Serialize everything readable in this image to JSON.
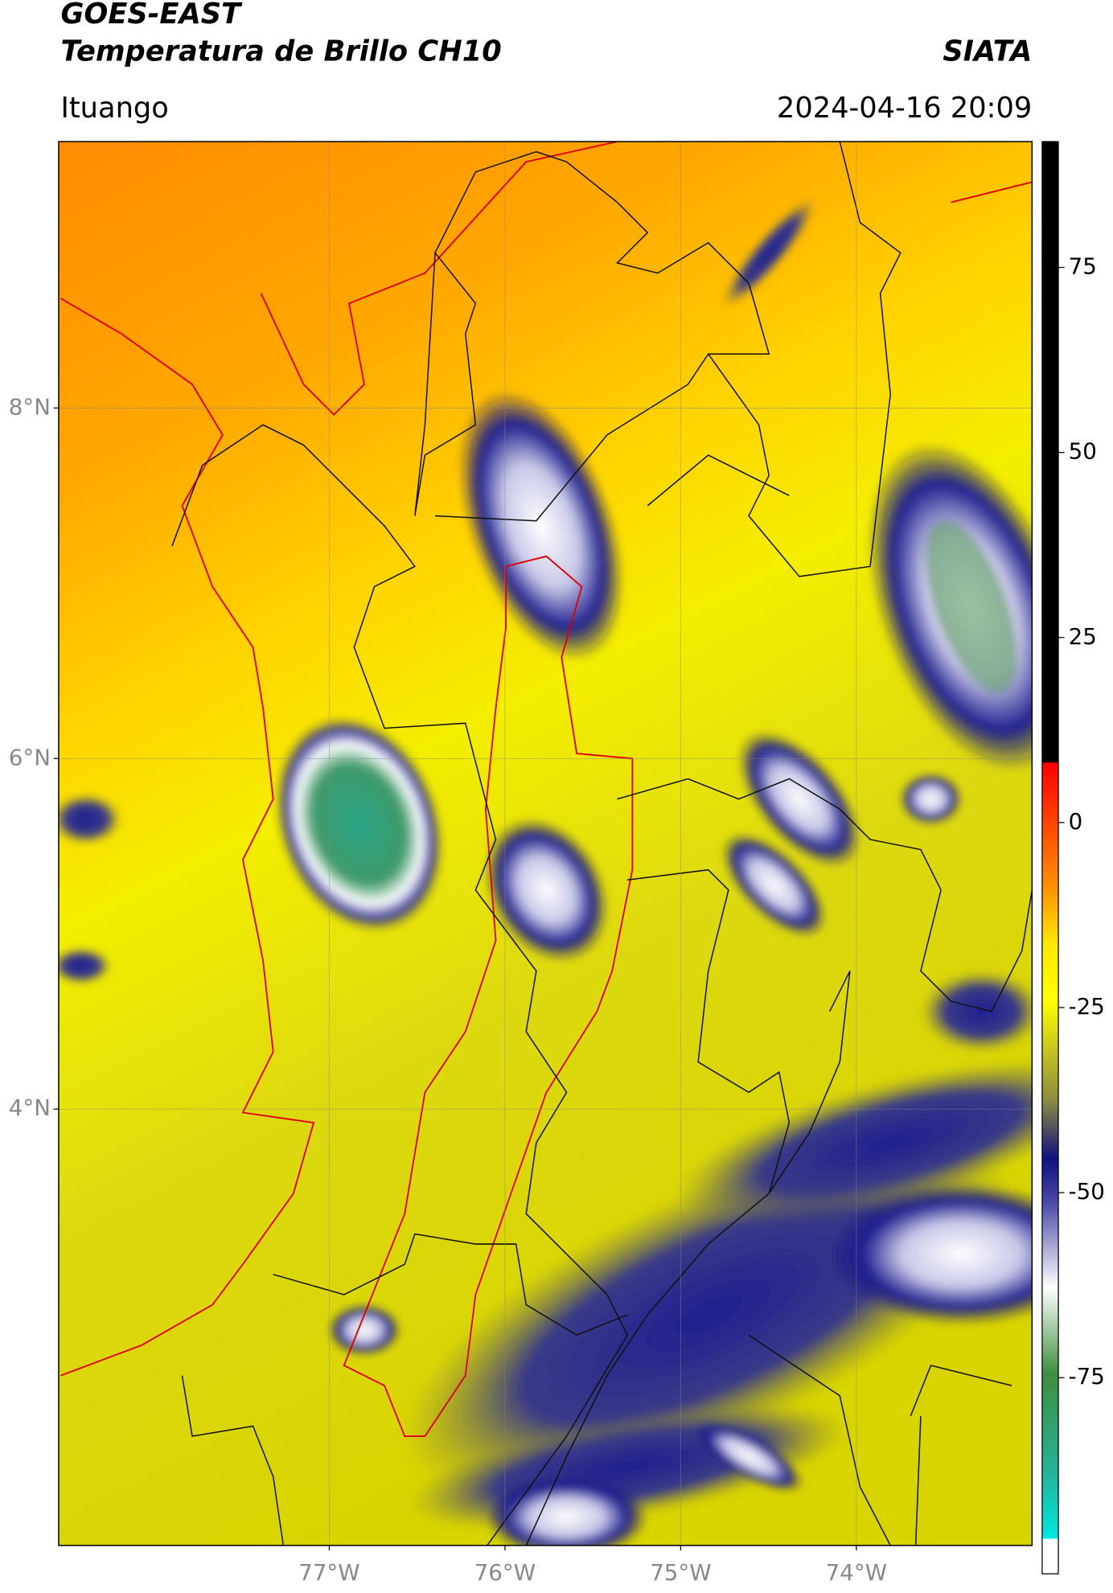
{
  "header": {
    "title": "GOES-EAST",
    "subtitle": "Temperatura de Brillo CH10",
    "source": "SIATA",
    "location": "Ituango",
    "datetime": "2024-04-16 20:09"
  },
  "map": {
    "lonlim": [
      -78.54,
      -73.0
    ],
    "latlim": [
      1.51,
      9.52
    ],
    "lat_ticks": [
      {
        "value": 8,
        "label": "8°N"
      },
      {
        "value": 6,
        "label": "6°N"
      },
      {
        "value": 4,
        "label": "4°N"
      }
    ],
    "lon_ticks": [
      {
        "value": -77,
        "label": "77°W"
      },
      {
        "value": -76,
        "label": "76°W"
      },
      {
        "value": -75,
        "label": "75°W"
      },
      {
        "value": -74,
        "label": "74°W"
      }
    ],
    "grid": true
  },
  "colorbar": {
    "lim": [
      -101.5,
      92
    ],
    "ticks": [
      75,
      50,
      25,
      0,
      -25,
      -50,
      -75
    ]
  }
}
